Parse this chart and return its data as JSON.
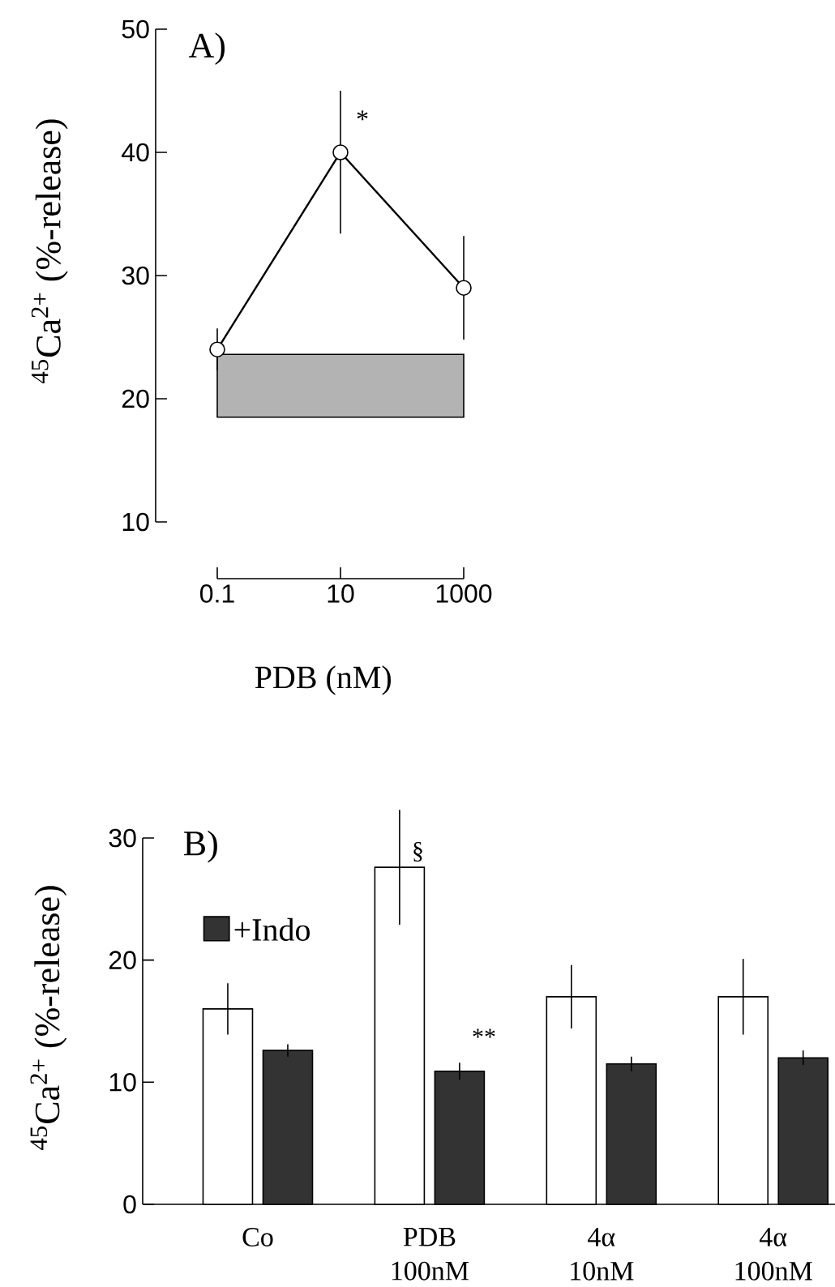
{
  "chart_data": [
    {
      "type": "line",
      "title": "A)",
      "xlabel": "PDB (nM)",
      "ylabel": "$^{45}$Ca$^{2+}$ (%-release)",
      "x": [
        0.1,
        10,
        1000
      ],
      "series": [
        {
          "color": "#000000",
          "values": [
            24,
            40,
            29
          ],
          "errors": [
            1.7,
            [
              33.4,
              45
            ],
            4.2
          ]
        }
      ],
      "log": "x",
      "xlim": [
        0.1,
        1000
      ],
      "xticks": [
        0.1,
        10,
        1000
      ],
      "ylim": [
        10,
        50
      ],
      "yticks": [
        10,
        20,
        30,
        40,
        50
      ],
      "marker": "circle",
      "line_style": "solid",
      "bands": [
        {
          "axis": "y",
          "from": 18.5,
          "to": 23.6,
          "color": "#b3b3b3"
        }
      ],
      "annotations": [
        {
          "text": "*",
          "x": 10,
          "y": 42.7
        }
      ]
    },
    {
      "type": "bar",
      "title": "B)",
      "ylabel": "$^{45}$Ca$^{2+}$ (%-release)",
      "categories": [
        "Co",
        "PDB 100nM",
        "4α 10nM",
        "4α 100nM"
      ],
      "series": [
        {
          "color": "#ffffff",
          "values": [
            16.0,
            27.6,
            17.0,
            17.0
          ],
          "errors": [
            2.1,
            4.7,
            2.6,
            3.1
          ]
        },
        {
          "name": "+Indo",
          "color": "#333333",
          "values": [
            12.6,
            10.9,
            11.5,
            12.0
          ],
          "errors": [
            0.5,
            0.7,
            0.6,
            0.6
          ]
        }
      ],
      "ylim": [
        0,
        30
      ],
      "yticks": [
        0,
        10,
        20,
        30
      ],
      "legend": "top left",
      "annotations": [
        {
          "text": "§",
          "x": "PDB 100nM",
          "y": 27.6
        },
        {
          "text": "**",
          "x": "PDB 100nM",
          "y": 12.6
        }
      ]
    }
  ]
}
